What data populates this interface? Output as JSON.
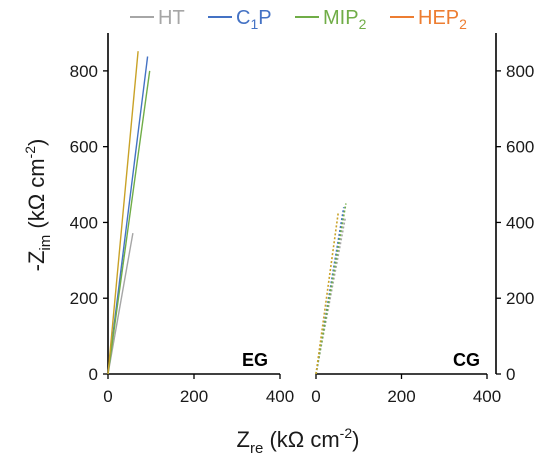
{
  "chart_data": {
    "type": "line",
    "colors": {
      "HT": "#a6a6a6",
      "C1P": "#4472c4",
      "MIP2": "#70ad47",
      "HEP2": "#ed7d31",
      "HEP2_line": "#c9a227",
      "axis": "#000000"
    },
    "legend": {
      "position": "top",
      "entries": [
        {
          "key": "HT",
          "base": "HT",
          "sub": "",
          "tail": ""
        },
        {
          "key": "C1P",
          "base": "C",
          "sub": "1",
          "tail": "P"
        },
        {
          "key": "MIP2",
          "base": "MIP",
          "sub": "2",
          "tail": ""
        },
        {
          "key": "HEP2",
          "base": "HEP",
          "sub": "2",
          "tail": ""
        }
      ]
    },
    "y_axis": {
      "label_main": "-Z",
      "label_sub": "im",
      "label_unit": " (kΩ cm",
      "label_sup": "-2",
      "label_close": ")",
      "range": [
        0,
        900
      ],
      "ticks": [
        0,
        200,
        400,
        600,
        800
      ],
      "tick_labels": [
        "0",
        "200",
        "400",
        "600",
        "800"
      ]
    },
    "x_axis": {
      "label_main": "Z",
      "label_sub": "re",
      "label_unit": " (kΩ cm",
      "label_sup": "-2",
      "label_close": ")",
      "range": [
        0,
        400
      ],
      "ticks": [
        0,
        200,
        400
      ],
      "tick_labels": [
        "0",
        "200",
        "400"
      ]
    },
    "panels": [
      {
        "label": "EG",
        "line_style": "solid",
        "y_ticks_side": "left",
        "series": [
          {
            "key": "HT",
            "points": [
              [
                0,
                0
              ],
              [
                58,
                372
              ]
            ]
          },
          {
            "key": "C1P",
            "points": [
              [
                0,
                0
              ],
              [
                92,
                838
              ]
            ]
          },
          {
            "key": "MIP2",
            "points": [
              [
                0,
                0
              ],
              [
                97,
                800
              ]
            ]
          },
          {
            "key": "HEP2",
            "points": [
              [
                0,
                0
              ],
              [
                70,
                852
              ]
            ]
          }
        ]
      },
      {
        "label": "CG",
        "line_style": "dotted",
        "y_ticks_side": "right",
        "series": [
          {
            "key": "HT",
            "points": [
              [
                0,
                0
              ],
              [
                68,
                410
              ]
            ]
          },
          {
            "key": "C1P",
            "points": [
              [
                0,
                0
              ],
              [
                65,
                440
              ]
            ]
          },
          {
            "key": "MIP2",
            "points": [
              [
                0,
                0
              ],
              [
                70,
                450
              ]
            ]
          },
          {
            "key": "HEP2",
            "points": [
              [
                0,
                0
              ],
              [
                52,
                425
              ]
            ]
          }
        ]
      }
    ]
  }
}
